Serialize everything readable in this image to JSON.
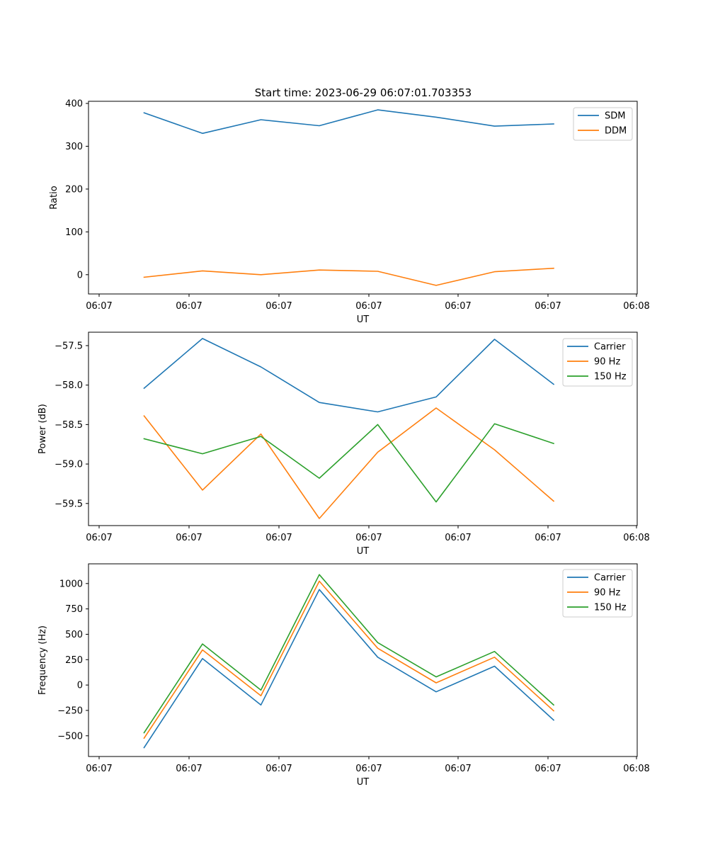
{
  "title": "Start time: 2023-06-29 06:07:01.703353",
  "colors": {
    "blue": "#1f77b4",
    "orange": "#ff7f0e",
    "green": "#2ca02c"
  },
  "chart_data": [
    {
      "type": "line",
      "xlabel": "UT",
      "ylabel": "Ratio",
      "xticks": [
        "06:07",
        "06:07",
        "06:07",
        "06:07",
        "06:07",
        "06:07",
        "06:08"
      ],
      "yticks": [
        0,
        100,
        200,
        300,
        400
      ],
      "ylim": [
        -45,
        405
      ],
      "legend_position": "upper-right",
      "series": [
        {
          "name": "SDM",
          "color": "#1f77b4",
          "values": [
            378,
            330,
            362,
            348,
            385,
            368,
            347,
            352
          ]
        },
        {
          "name": "DDM",
          "color": "#ff7f0e",
          "values": [
            -6,
            9,
            0,
            11,
            8,
            -25,
            7,
            15
          ]
        }
      ]
    },
    {
      "type": "line",
      "xlabel": "UT",
      "ylabel": "Power (dB)",
      "xticks": [
        "06:07",
        "06:07",
        "06:07",
        "06:07",
        "06:07",
        "06:07",
        "06:08"
      ],
      "yticks": [
        "−57.5",
        "−58.0",
        "−58.5",
        "−59.0",
        "−59.5"
      ],
      "yticks_values": [
        -57.5,
        -58.0,
        -58.5,
        -59.0,
        -59.5
      ],
      "ylim": [
        -59.78,
        -57.33
      ],
      "legend_position": "upper-right",
      "series": [
        {
          "name": "Carrier",
          "color": "#1f77b4",
          "values": [
            -58.04,
            -57.41,
            -57.77,
            -58.22,
            -58.34,
            -58.15,
            -57.42,
            -57.99
          ]
        },
        {
          "name": "90 Hz",
          "color": "#ff7f0e",
          "values": [
            -58.39,
            -59.33,
            -58.62,
            -59.69,
            -58.85,
            -58.29,
            -58.82,
            -59.47
          ]
        },
        {
          "name": "150 Hz",
          "color": "#2ca02c",
          "values": [
            -58.68,
            -58.87,
            -58.65,
            -59.18,
            -58.5,
            -59.48,
            -58.49,
            -58.74
          ]
        }
      ]
    },
    {
      "type": "line",
      "xlabel": "UT",
      "ylabel": "Frequency (Hz)",
      "xticks": [
        "06:07",
        "06:07",
        "06:07",
        "06:07",
        "06:07",
        "06:07",
        "06:08"
      ],
      "yticks": [
        "1000",
        "750",
        "500",
        "250",
        "0",
        "−250",
        "−500"
      ],
      "yticks_values": [
        1000,
        750,
        500,
        250,
        0,
        -250,
        -500
      ],
      "ylim": [
        -704,
        1194
      ],
      "legend_position": "upper-right",
      "series": [
        {
          "name": "Carrier",
          "color": "#1f77b4",
          "values": [
            -617,
            261,
            -197,
            941,
            274,
            -67,
            186,
            -345
          ]
        },
        {
          "name": "90 Hz",
          "color": "#ff7f0e",
          "values": [
            -523,
            346,
            -105,
            1023,
            362,
            22,
            274,
            -254
          ]
        },
        {
          "name": "150 Hz",
          "color": "#2ca02c",
          "values": [
            -470,
            405,
            -50,
            1088,
            418,
            80,
            331,
            -196
          ]
        }
      ]
    }
  ]
}
